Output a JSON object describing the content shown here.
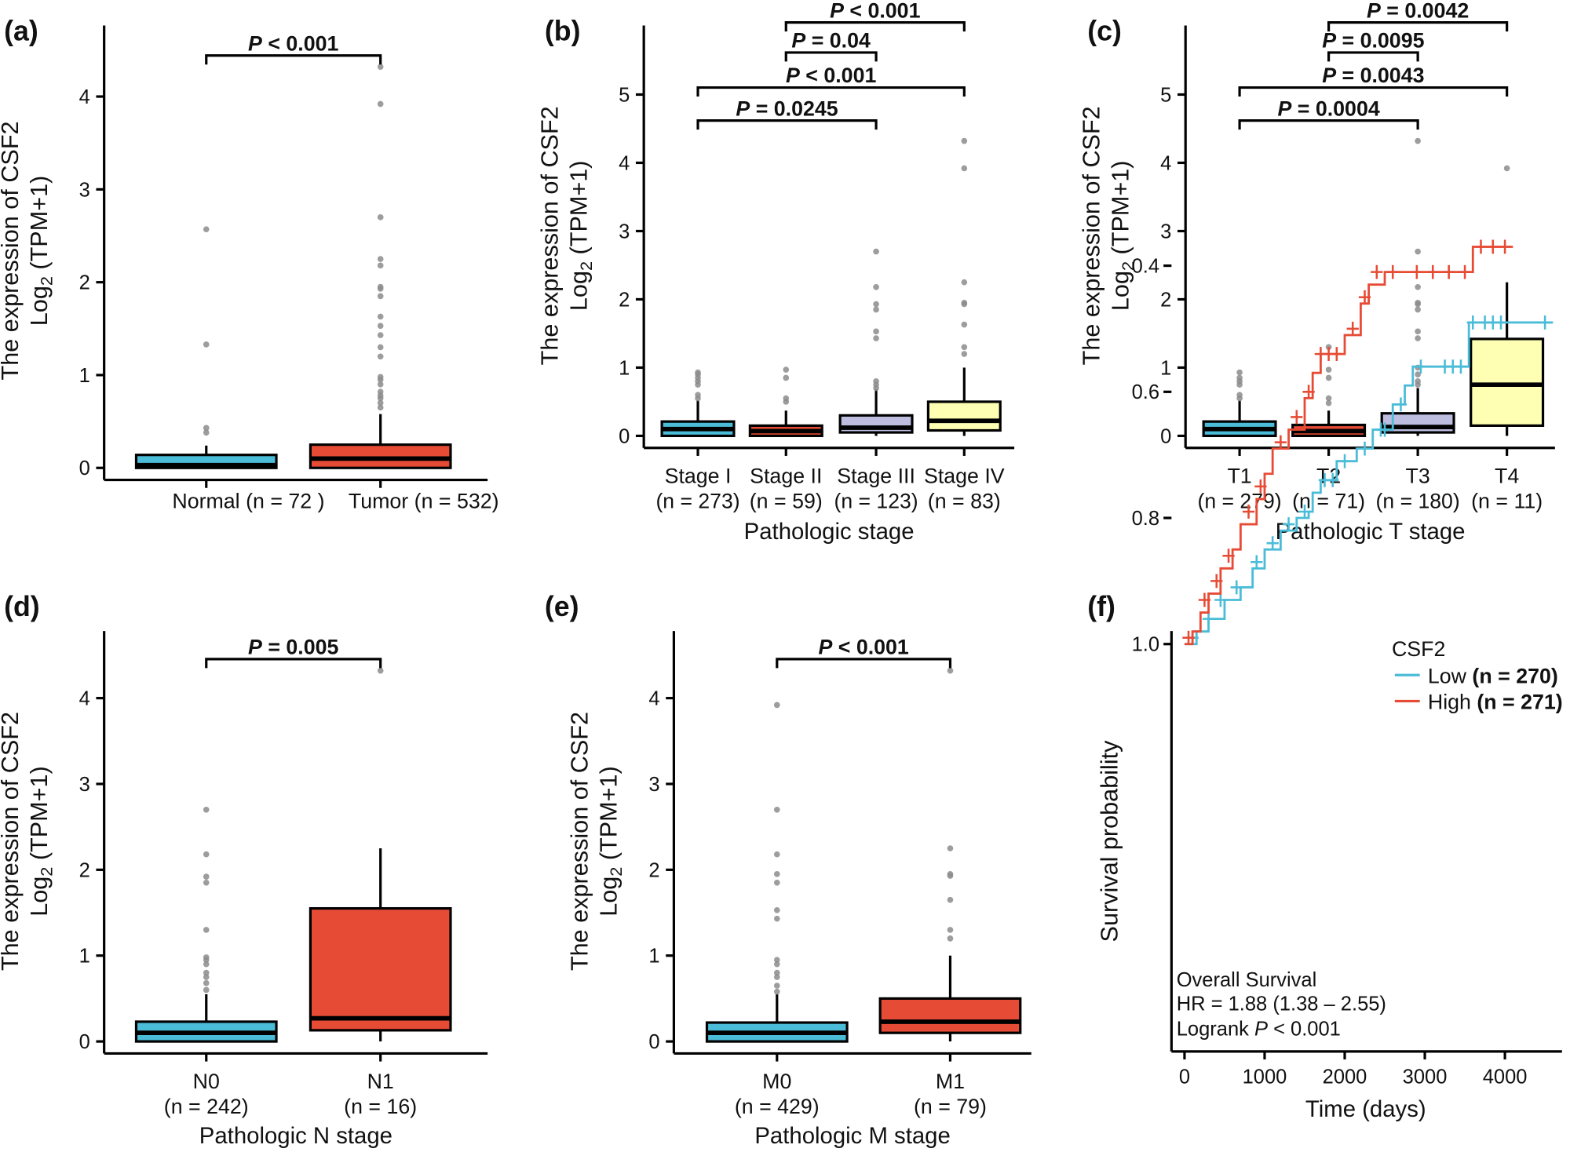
{
  "colors": {
    "blue": "#4bbcd8",
    "red": "#e64b35",
    "lavender": "#bdbde0",
    "yellow": "#ffffb3",
    "outlier": "#8c8c8c"
  },
  "chart_data": [
    {
      "id": "a",
      "letter": "(a)",
      "type": "box",
      "ylabel_line1": "The expression of CSF2",
      "ylabel_log": "Log",
      "ylabel_sub": "2",
      "ylabel_rest": " (TPM+1)",
      "xlabel": "",
      "yticks": [
        0,
        1,
        2,
        3,
        4
      ],
      "groups": [
        {
          "label": "Normal",
          "n": "(n = 72 )",
          "color": "blue",
          "wmin": 0,
          "q1": 0,
          "median": 0.03,
          "q3": 0.14,
          "wmax": 0.24,
          "outliers": [
            0.38,
            0.43,
            1.33,
            2.57
          ]
        },
        {
          "label": "Tumor",
          "n": "(n = 532)",
          "color": "red",
          "wmin": 0,
          "q1": 0,
          "median": 0.1,
          "q3": 0.25,
          "wmax": 0.58,
          "outliers": [
            0.65,
            0.7,
            0.75,
            0.78,
            0.82,
            0.9,
            0.95,
            0.98,
            1.2,
            1.3,
            1.43,
            1.53,
            1.63,
            1.85,
            1.93,
            1.95,
            2.18,
            2.25,
            2.7,
            3.92,
            4.32
          ]
        }
      ],
      "brackets": [
        {
          "from": 0,
          "to": 1,
          "p": "P",
          "text": " < 0.001"
        }
      ]
    },
    {
      "id": "b",
      "letter": "(b)",
      "type": "box",
      "ylabel_line1": "The expression of CSF2",
      "ylabel_log": "Log",
      "ylabel_sub": "2",
      "ylabel_rest": " (TPM+1)",
      "xlabel": "Pathologic stage",
      "yticks": [
        0,
        1,
        2,
        3,
        4,
        5
      ],
      "groups": [
        {
          "label": "Stage I",
          "n": "(n = 273)",
          "color": "blue",
          "wmin": 0,
          "q1": 0,
          "median": 0.1,
          "q3": 0.21,
          "wmax": 0.52,
          "outliers": [
            0.55,
            0.6,
            0.75,
            0.8,
            0.85,
            0.9,
            0.93
          ]
        },
        {
          "label": "Stage II",
          "n": "(n = 59)",
          "color": "red",
          "wmin": 0,
          "q1": 0,
          "median": 0.07,
          "q3": 0.15,
          "wmax": 0.37,
          "outliers": [
            0.5,
            0.55,
            0.85,
            0.97
          ]
        },
        {
          "label": "Stage III",
          "n": "(n = 123)",
          "color": "lavender",
          "wmin": 0,
          "q1": 0.05,
          "median": 0.12,
          "q3": 0.3,
          "wmax": 0.68,
          "outliers": [
            0.7,
            0.75,
            0.8,
            1.43,
            1.53,
            1.85,
            1.93,
            2.18,
            2.7
          ]
        },
        {
          "label": "Stage IV",
          "n": "(n = 83)",
          "color": "yellow",
          "wmin": 0,
          "q1": 0.08,
          "median": 0.22,
          "q3": 0.5,
          "wmax": 1.0,
          "outliers": [
            1.2,
            1.3,
            1.63,
            1.93,
            1.95,
            2.25,
            3.92,
            4.32
          ]
        }
      ],
      "brackets": [
        {
          "from": 0,
          "to": 2,
          "p": "P",
          "text": " = 0.0245"
        },
        {
          "from": 0,
          "to": 3,
          "p": "P",
          "text": " < 0.001"
        },
        {
          "from": 1,
          "to": 2,
          "p": "P",
          "text": " = 0.04"
        },
        {
          "from": 1,
          "to": 3,
          "p": "P",
          "text": " < 0.001"
        }
      ]
    },
    {
      "id": "c",
      "letter": "(c)",
      "type": "box",
      "ylabel_line1": "The expression of CSF2",
      "ylabel_log": "Log",
      "ylabel_sub": "2",
      "ylabel_rest": " (TPM+1)",
      "xlabel": "Pathologic T stage",
      "yticks": [
        0,
        1,
        2,
        3,
        4,
        5
      ],
      "groups": [
        {
          "label": "T1",
          "n": "(n = 279)",
          "color": "blue",
          "wmin": 0,
          "q1": 0,
          "median": 0.1,
          "q3": 0.21,
          "wmax": 0.52,
          "outliers": [
            0.55,
            0.6,
            0.75,
            0.8,
            0.85,
            0.93
          ]
        },
        {
          "label": "T2",
          "n": "(n = 71)",
          "color": "red",
          "wmin": 0,
          "q1": 0,
          "median": 0.07,
          "q3": 0.16,
          "wmax": 0.37,
          "outliers": [
            0.48,
            0.55,
            0.85,
            0.97,
            1.3
          ]
        },
        {
          "label": "T3",
          "n": "(n = 180)",
          "color": "lavender",
          "wmin": 0,
          "q1": 0.05,
          "median": 0.13,
          "q3": 0.33,
          "wmax": 0.7,
          "outliers": [
            0.75,
            0.8,
            0.9,
            1.0,
            1.43,
            1.53,
            1.85,
            1.93,
            1.95,
            2.18,
            2.7,
            4.32
          ]
        },
        {
          "label": "T4",
          "n": "(n = 11)",
          "color": "yellow",
          "wmin": 0,
          "q1": 0.15,
          "median": 0.75,
          "q3": 1.42,
          "wmax": 2.25,
          "outliers": [
            3.92
          ]
        }
      ],
      "brackets": [
        {
          "from": 0,
          "to": 2,
          "p": "P",
          "text": " = 0.0004"
        },
        {
          "from": 0,
          "to": 3,
          "p": "P",
          "text": " = 0.0043"
        },
        {
          "from": 1,
          "to": 2,
          "p": "P",
          "text": " = 0.0095"
        },
        {
          "from": 1,
          "to": 3,
          "p": "P",
          "text": " = 0.0042"
        }
      ]
    },
    {
      "id": "d",
      "letter": "(d)",
      "type": "box",
      "ylabel_line1": "The expression of CSF2",
      "ylabel_log": "Log",
      "ylabel_sub": "2",
      "ylabel_rest": " (TPM+1)",
      "xlabel": "Pathologic N stage",
      "yticks": [
        0,
        1,
        2,
        3,
        4
      ],
      "groups": [
        {
          "label": "N0",
          "n": "(n = 242)",
          "color": "blue",
          "wmin": 0,
          "q1": 0,
          "median": 0.1,
          "q3": 0.23,
          "wmax": 0.55,
          "outliers": [
            0.6,
            0.68,
            0.75,
            0.8,
            0.9,
            0.95,
            0.98,
            1.3,
            1.85,
            1.92,
            2.18,
            2.7
          ]
        },
        {
          "label": "N1",
          "n": "(n = 16)",
          "color": "red",
          "wmin": 0,
          "q1": 0.13,
          "median": 0.27,
          "q3": 1.55,
          "wmax": 2.25,
          "outliers": [
            4.32
          ]
        }
      ],
      "brackets": [
        {
          "from": 0,
          "to": 1,
          "p": "P",
          "text": " = 0.005"
        }
      ]
    },
    {
      "id": "e",
      "letter": "(e)",
      "type": "box",
      "ylabel_line1": "The expression of CSF2",
      "ylabel_log": "Log",
      "ylabel_sub": "2",
      "ylabel_rest": " (TPM+1)",
      "xlabel": "Pathologic M stage",
      "yticks": [
        0,
        1,
        2,
        3,
        4
      ],
      "groups": [
        {
          "label": "M0",
          "n": "(n = 429)",
          "color": "blue",
          "wmin": 0,
          "q1": 0,
          "median": 0.1,
          "q3": 0.22,
          "wmax": 0.55,
          "outliers": [
            0.58,
            0.65,
            0.75,
            0.8,
            0.9,
            0.95,
            1.43,
            1.53,
            1.85,
            1.95,
            2.18,
            2.7,
            3.92
          ]
        },
        {
          "label": "M1",
          "n": "(n = 79)",
          "color": "red",
          "wmin": 0,
          "q1": 0.1,
          "median": 0.23,
          "q3": 0.5,
          "wmax": 1.0,
          "outliers": [
            1.2,
            1.3,
            1.65,
            1.93,
            1.95,
            2.25,
            4.32
          ]
        }
      ],
      "brackets": [
        {
          "from": 0,
          "to": 1,
          "p": "P",
          "text": " < 0.001"
        }
      ]
    },
    {
      "id": "f",
      "letter": "(f)",
      "type": "line",
      "xlabel": "Time (days)",
      "ylabel": "Survival probability",
      "xticks": [
        0,
        1000,
        2000,
        3000,
        4000
      ],
      "yticks": [
        "0.4",
        "0.6",
        "0.8",
        "1.0"
      ],
      "ylim": [
        0.37,
        1.0
      ],
      "xlim": [
        0,
        4600
      ],
      "legend_title": "CSF2",
      "legend_position": "top-right",
      "series": [
        {
          "name": "Low",
          "n": "(n = 270)",
          "color": "blue",
          "steps": [
            [
              0,
              1
            ],
            [
              150,
              0.98
            ],
            [
              300,
              0.96
            ],
            [
              500,
              0.93
            ],
            [
              700,
              0.91
            ],
            [
              850,
              0.88
            ],
            [
              1000,
              0.85
            ],
            [
              1200,
              0.82
            ],
            [
              1400,
              0.8
            ],
            [
              1550,
              0.79
            ],
            [
              1600,
              0.76
            ],
            [
              1700,
              0.74
            ],
            [
              1900,
              0.71
            ],
            [
              2150,
              0.69
            ],
            [
              2350,
              0.66
            ],
            [
              2600,
              0.62
            ],
            [
              2750,
              0.59
            ],
            [
              2850,
              0.56
            ],
            [
              3550,
              0.49
            ],
            [
              4600,
              0.49
            ]
          ],
          "censored": [
            [
              100,
              0.99
            ],
            [
              300,
              0.96
            ],
            [
              450,
              0.93
            ],
            [
              650,
              0.91
            ],
            [
              900,
              0.87
            ],
            [
              1100,
              0.84
            ],
            [
              1300,
              0.81
            ],
            [
              1500,
              0.79
            ],
            [
              1750,
              0.74
            ],
            [
              1850,
              0.74
            ],
            [
              2000,
              0.71
            ],
            [
              2250,
              0.69
            ],
            [
              2450,
              0.66
            ],
            [
              2500,
              0.66
            ],
            [
              2700,
              0.62
            ],
            [
              2950,
              0.56
            ],
            [
              3250,
              0.56
            ],
            [
              3350,
              0.56
            ],
            [
              3450,
              0.56
            ],
            [
              3600,
              0.49
            ],
            [
              3750,
              0.49
            ],
            [
              3850,
              0.49
            ],
            [
              3950,
              0.49
            ],
            [
              4500,
              0.49
            ]
          ]
        },
        {
          "name": "High",
          "n": "(n = 271)",
          "color": "red",
          "steps": [
            [
              0,
              1
            ],
            [
              100,
              0.98
            ],
            [
              200,
              0.95
            ],
            [
              300,
              0.92
            ],
            [
              450,
              0.88
            ],
            [
              600,
              0.85
            ],
            [
              700,
              0.81
            ],
            [
              900,
              0.77
            ],
            [
              1000,
              0.73
            ],
            [
              1100,
              0.69
            ],
            [
              1300,
              0.66
            ],
            [
              1500,
              0.61
            ],
            [
              1600,
              0.57
            ],
            [
              1700,
              0.54
            ],
            [
              2000,
              0.51
            ],
            [
              2200,
              0.46
            ],
            [
              2300,
              0.43
            ],
            [
              2500,
              0.41
            ],
            [
              3600,
              0.37
            ],
            [
              4100,
              0.37
            ]
          ],
          "censored": [
            [
              50,
              0.99
            ],
            [
              250,
              0.93
            ],
            [
              400,
              0.9
            ],
            [
              550,
              0.86
            ],
            [
              800,
              0.79
            ],
            [
              950,
              0.75
            ],
            [
              1200,
              0.68
            ],
            [
              1400,
              0.64
            ],
            [
              1550,
              0.6
            ],
            [
              1700,
              0.54
            ],
            [
              1800,
              0.54
            ],
            [
              1900,
              0.54
            ],
            [
              2100,
              0.5
            ],
            [
              2250,
              0.45
            ],
            [
              2400,
              0.41
            ],
            [
              2600,
              0.41
            ],
            [
              2900,
              0.41
            ],
            [
              3100,
              0.41
            ],
            [
              3300,
              0.41
            ],
            [
              3500,
              0.41
            ],
            [
              3700,
              0.37
            ],
            [
              3850,
              0.37
            ],
            [
              4000,
              0.37
            ]
          ]
        }
      ],
      "annotation_line1": "Overall Survival",
      "annotation_line2": "HR = 1.88 (1.38 –  2.55)",
      "annotation_line3_prefix": "Logrank  ",
      "annotation_line3_p": "P",
      "annotation_line3_rest": " < 0.001"
    }
  ]
}
